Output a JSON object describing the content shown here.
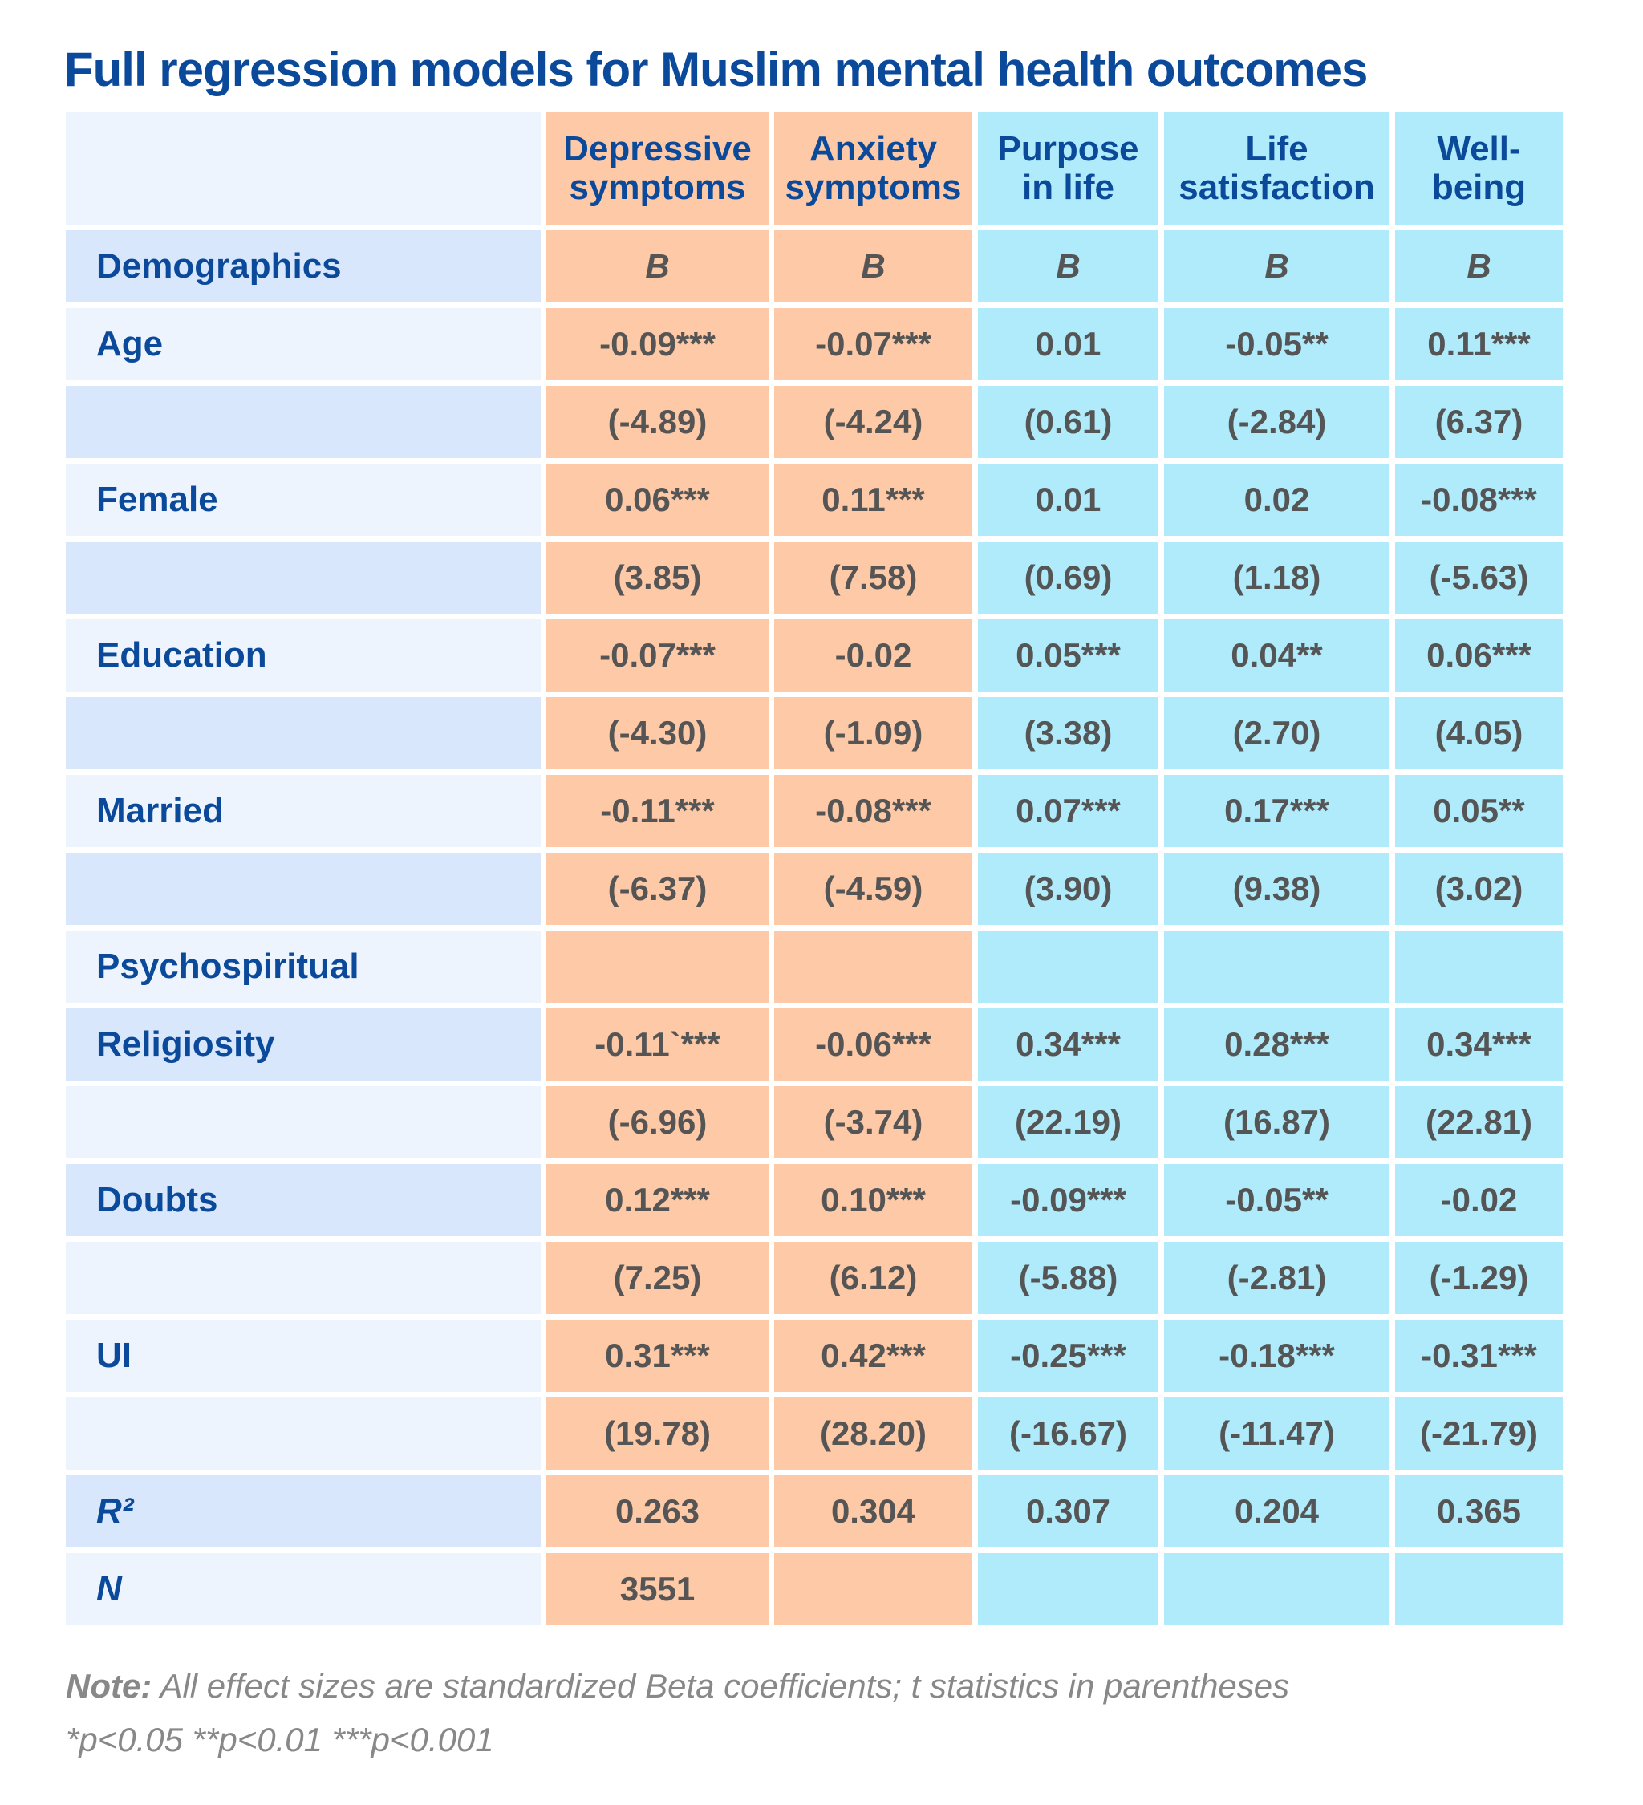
{
  "title": "Full regression models for Muslim mental health outcomes",
  "table": {
    "columns": [
      "Depressive symptoms",
      "Anxiety symptoms",
      "Purpose in life",
      "Life satisfaction",
      "Well-being"
    ],
    "rows": [
      {
        "label": "Demographics",
        "cells": [
          "B",
          "B",
          "B",
          "B",
          "B"
        ]
      },
      {
        "label": "Age",
        "cells": [
          "-0.09***",
          "-0.07***",
          "0.01",
          "-0.05**",
          "0.11***"
        ]
      },
      {
        "label": null,
        "cells": [
          "(-4.89)",
          "(-4.24)",
          "(0.61)",
          "(-2.84)",
          "(6.37)"
        ]
      },
      {
        "label": "Female",
        "cells": [
          "0.06***",
          "0.11***",
          "0.01",
          "0.02",
          "-0.08***"
        ]
      },
      {
        "label": null,
        "cells": [
          "(3.85)",
          "(7.58)",
          "(0.69)",
          "(1.18)",
          "(-5.63)"
        ]
      },
      {
        "label": "Education",
        "cells": [
          "-0.07***",
          "-0.02",
          "0.05***",
          "0.04**",
          "0.06***"
        ]
      },
      {
        "label": null,
        "cells": [
          "(-4.30)",
          "(-1.09)",
          "(3.38)",
          "(2.70)",
          "(4.05)"
        ]
      },
      {
        "label": "Married",
        "cells": [
          "-0.11***",
          "-0.08***",
          "0.07***",
          "0.17***",
          "0.05**"
        ]
      },
      {
        "label": null,
        "cells": [
          "(-6.37)",
          "(-4.59)",
          "(3.90)",
          "(9.38)",
          "(3.02)"
        ]
      },
      {
        "label": "Psychospiritual",
        "cells": [
          null,
          null,
          null,
          null,
          null
        ]
      },
      {
        "label": "Religiosity",
        "cells": [
          "-0.11`***",
          "-0.06***",
          "0.34***",
          "0.28***",
          "0.34***"
        ]
      },
      {
        "label": null,
        "cells": [
          "(-6.96)",
          "(-3.74)",
          "(22.19)",
          "(16.87)",
          "(22.81)"
        ]
      },
      {
        "label": "Doubts",
        "cells": [
          "0.12***",
          "0.10***",
          "-0.09***",
          "-0.05**",
          "-0.02"
        ]
      },
      {
        "label": null,
        "cells": [
          "(7.25)",
          "(6.12)",
          "(-5.88)",
          "(-2.81)",
          "(-1.29)"
        ]
      },
      {
        "label": "UI",
        "cells": [
          "0.31***",
          "0.42***",
          "-0.25***",
          "-0.18***",
          "-0.31***"
        ]
      },
      {
        "label": null,
        "cells": [
          "(19.78)",
          "(28.20)",
          "(-16.67)",
          "(-11.47)",
          "(-21.79)"
        ]
      },
      {
        "label": "R²",
        "cells": [
          "0.263",
          "0.304",
          "0.307",
          "0.204",
          "0.365"
        ]
      },
      {
        "label": "N",
        "cells": [
          "3551",
          null,
          null,
          null,
          null
        ]
      }
    ]
  },
  "note": {
    "label": "Note:",
    "text": "All effect sizes are standardized Beta coefficients; t statistics in parentheses"
  },
  "significance": "*p<0.05 **p<0.01 ***p<0.001"
}
